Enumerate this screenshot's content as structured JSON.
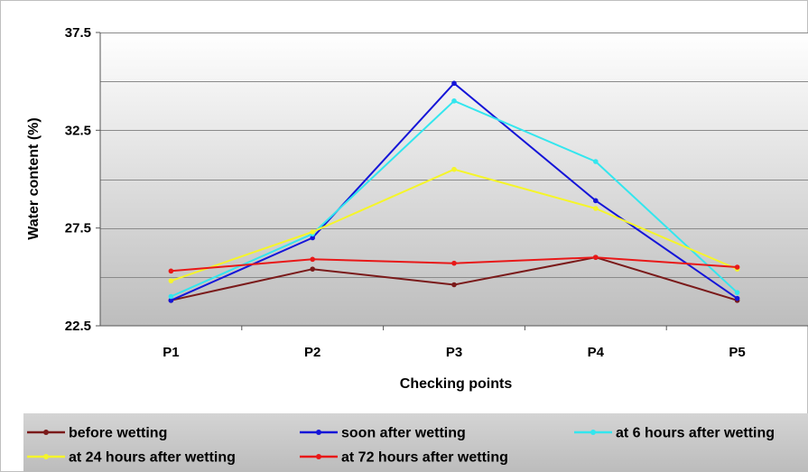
{
  "chart_data": {
    "type": "line",
    "title": "",
    "xlabel": "Checking points",
    "ylabel": "Water content (%)",
    "categories": [
      "P1",
      "P2",
      "P3",
      "P4",
      "P5"
    ],
    "ylim": [
      22.5,
      37.5
    ],
    "yticks": [
      "37.5",
      "32.5",
      "27.5",
      "22.5"
    ],
    "grid": true,
    "legend_position": "bottom",
    "series": [
      {
        "name": "before wetting",
        "color": "#7a1a1a",
        "values": [
          23.8,
          25.4,
          24.6,
          26.0,
          23.8
        ]
      },
      {
        "name": "soon after wetting",
        "color": "#1515d8",
        "values": [
          23.8,
          27.0,
          34.9,
          28.9,
          23.9
        ]
      },
      {
        "name": "at 6 hours after wetting",
        "color": "#33e6ee",
        "values": [
          24.0,
          27.2,
          34.0,
          30.9,
          24.2
        ]
      },
      {
        "name": "at 24 hours after wetting",
        "color": "#f5f52a",
        "values": [
          24.8,
          27.3,
          30.5,
          28.5,
          25.4
        ]
      },
      {
        "name": "at 72 hours after wetting",
        "color": "#e81818",
        "values": [
          25.3,
          25.9,
          25.7,
          26.0,
          25.5
        ]
      }
    ]
  }
}
